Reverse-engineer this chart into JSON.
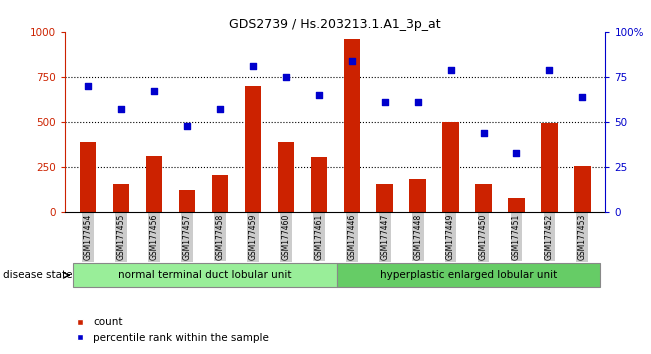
{
  "title": "GDS2739 / Hs.203213.1.A1_3p_at",
  "samples": [
    "GSM177454",
    "GSM177455",
    "GSM177456",
    "GSM177457",
    "GSM177458",
    "GSM177459",
    "GSM177460",
    "GSM177461",
    "GSM177446",
    "GSM177447",
    "GSM177448",
    "GSM177449",
    "GSM177450",
    "GSM177451",
    "GSM177452",
    "GSM177453"
  ],
  "counts": [
    390,
    155,
    315,
    125,
    205,
    700,
    390,
    305,
    960,
    160,
    185,
    500,
    155,
    80,
    495,
    255
  ],
  "percentiles": [
    70,
    57,
    67,
    48,
    57,
    81,
    75,
    65,
    84,
    61,
    61,
    79,
    44,
    33,
    79,
    64
  ],
  "group1_label": "normal terminal duct lobular unit",
  "group2_label": "hyperplastic enlarged lobular unit",
  "group1_count": 8,
  "group2_count": 8,
  "ylim_left": [
    0,
    1000
  ],
  "ylim_right": [
    0,
    100
  ],
  "yticks_left": [
    0,
    250,
    500,
    750,
    1000
  ],
  "ytick_labels_left": [
    "0",
    "250",
    "500",
    "750",
    "1000"
  ],
  "yticks_right": [
    0,
    25,
    50,
    75,
    100
  ],
  "ytick_labels_right": [
    "0",
    "25",
    "50",
    "75",
    "100%"
  ],
  "bar_color": "#cc2200",
  "dot_color": "#0000cc",
  "grid_color": "#000000",
  "bg_color": "#ffffff",
  "left_axis_color": "#cc2200",
  "right_axis_color": "#0000cc",
  "xtick_bg_color": "#cccccc",
  "group1_color": "#99ee99",
  "group2_color": "#66cc66",
  "legend_count_color": "#cc2200",
  "legend_pct_color": "#0000cc",
  "disease_state_label": "disease state",
  "bar_width": 0.5
}
